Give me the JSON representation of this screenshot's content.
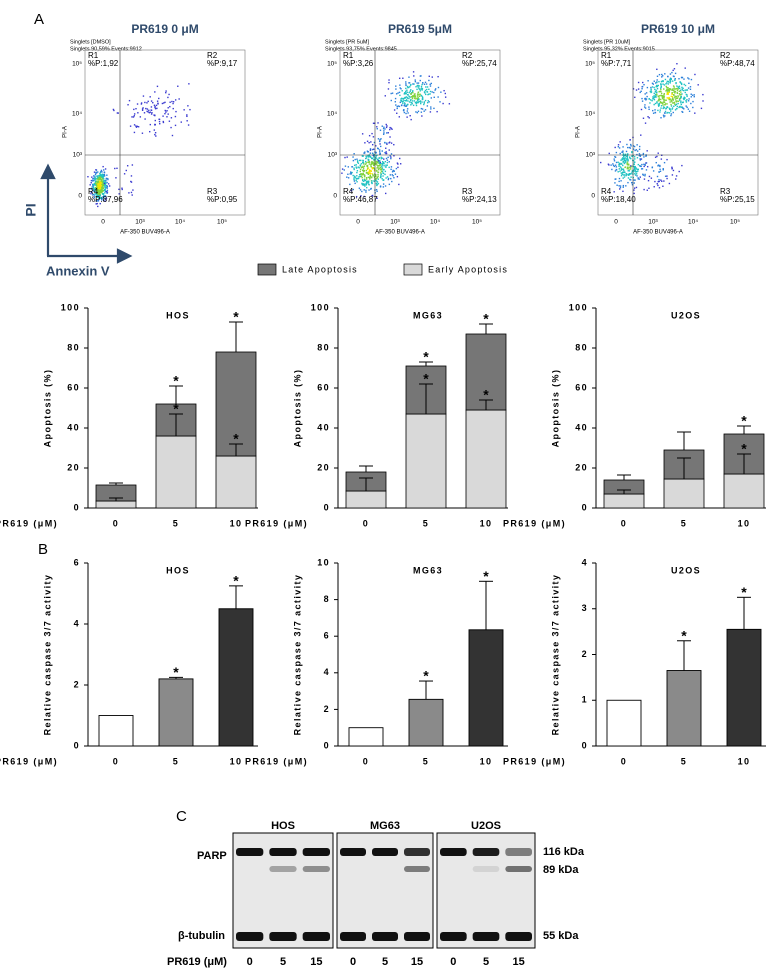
{
  "panel_labels": [
    "A",
    "B",
    "C"
  ],
  "flow": {
    "y_axis_label": "PI",
    "x_axis_label": "Annexin V",
    "plot_y_label": "PI-A",
    "plot_x_label": "AF-350 BUV496-A",
    "yticks": [
      "10⁵",
      "10⁴",
      "10³",
      "0"
    ],
    "xticks": [
      "0",
      "10³",
      "10⁴",
      "10⁵"
    ],
    "plots": [
      {
        "title": "PR619 0 μM",
        "header": [
          "Singlets [DMSO]",
          "Singlets 90,59% Events:9912"
        ],
        "quadrants": [
          {
            "name": "R1",
            "label": "%P:1,92"
          },
          {
            "name": "R2",
            "label": "%P:9,17"
          },
          {
            "name": "R3",
            "label": "%P:0,95"
          },
          {
            "name": "R4",
            "label": "%P:87,96"
          }
        ]
      },
      {
        "title": "PR619 5μM",
        "header": [
          "Singlets [PR 5uM]",
          "Singlets 93,75% Events:9845"
        ],
        "quadrants": [
          {
            "name": "R1",
            "label": "%P:3,26"
          },
          {
            "name": "R2",
            "label": "%P:25,74"
          },
          {
            "name": "R3",
            "label": "%P:24,13"
          },
          {
            "name": "R4",
            "label": "%P:46,87"
          }
        ]
      },
      {
        "title": "PR619 10 μM",
        "header": [
          "Singlets [PR 10uM]",
          "Singlets 95,32% Events:9015"
        ],
        "quadrants": [
          {
            "name": "R1",
            "label": "%P:7,71"
          },
          {
            "name": "R2",
            "label": "%P:48,74"
          },
          {
            "name": "R3",
            "label": "%P:25,15"
          },
          {
            "name": "R4",
            "label": "%P:18,40"
          }
        ]
      }
    ]
  },
  "chart_data": [
    {
      "type": "stacked_bar",
      "ylabel": "Apoptosis (%)",
      "xlabel": "PR619 (μM)",
      "categories": [
        "0",
        "5",
        "10"
      ],
      "ylim": [
        0,
        100
      ],
      "yticks": [
        0,
        20,
        40,
        60,
        80,
        100
      ],
      "series": [
        {
          "name": "Early Apoptosis",
          "color": "#d9d9d9"
        },
        {
          "name": "Late Apoptosis",
          "color": "#767676"
        }
      ],
      "panels": [
        {
          "title": "HOS",
          "series": [
            {
              "values": [
                3.5,
                36,
                26
              ],
              "errors": [
                1.5,
                11,
                6
              ],
              "significance": [
                null,
                "*",
                "*"
              ]
            },
            {
              "values": [
                8,
                16,
                52
              ],
              "errors": [
                1,
                9,
                15
              ],
              "significance": [
                null,
                "*",
                "*"
              ]
            }
          ]
        },
        {
          "title": "MG63",
          "series": [
            {
              "values": [
                8.5,
                47,
                49
              ],
              "errors": [
                6.5,
                15,
                5
              ],
              "significance": [
                null,
                "*",
                "*"
              ]
            },
            {
              "values": [
                9.5,
                24,
                38
              ],
              "errors": [
                3,
                2,
                5
              ],
              "significance": [
                null,
                "*",
                "*"
              ]
            }
          ]
        },
        {
          "title": "U2OS",
          "series": [
            {
              "values": [
                7,
                14.5,
                17
              ],
              "errors": [
                2,
                10.5,
                10
              ],
              "significance": [
                null,
                null,
                "*"
              ]
            },
            {
              "values": [
                7,
                14.5,
                20
              ],
              "errors": [
                2.5,
                9,
                4
              ],
              "significance": [
                null,
                null,
                "*"
              ]
            }
          ]
        }
      ]
    },
    {
      "type": "bar",
      "ylabel": "Relative caspase 3/7 activity",
      "xlabel": "PR619 (μM)",
      "categories": [
        "0",
        "5",
        "10"
      ],
      "colors": [
        "#ffffff",
        "#8a8a8a",
        "#333333"
      ],
      "panels": [
        {
          "title": "HOS",
          "ylim": [
            0,
            6
          ],
          "yticks": [
            0,
            2,
            4,
            6
          ],
          "values": [
            1,
            2.2,
            4.5
          ],
          "errors": [
            0,
            0.05,
            0.75
          ],
          "significance": [
            null,
            "*",
            "*"
          ]
        },
        {
          "title": "MG63",
          "ylim": [
            0,
            10
          ],
          "yticks": [
            0,
            2,
            4,
            6,
            8,
            10
          ],
          "values": [
            1,
            2.55,
            6.35
          ],
          "errors": [
            0,
            1,
            2.65
          ],
          "significance": [
            null,
            "*",
            "*"
          ]
        },
        {
          "title": "U2OS",
          "ylim": [
            0,
            4
          ],
          "yticks": [
            0,
            1,
            2,
            3,
            4
          ],
          "values": [
            1,
            1.65,
            2.55
          ],
          "errors": [
            0,
            0.65,
            0.7
          ],
          "significance": [
            null,
            "*",
            "*"
          ]
        }
      ]
    }
  ],
  "blot": {
    "cell_lines": [
      "HOS",
      "MG63",
      "U2OS"
    ],
    "proteins": [
      "PARP",
      "β-tubulin"
    ],
    "sizes": [
      "116 kDa",
      "89 kDa",
      "55 kDa"
    ],
    "xlabel": "PR619 (μM)",
    "lanes": [
      "0",
      "5",
      "15"
    ]
  }
}
